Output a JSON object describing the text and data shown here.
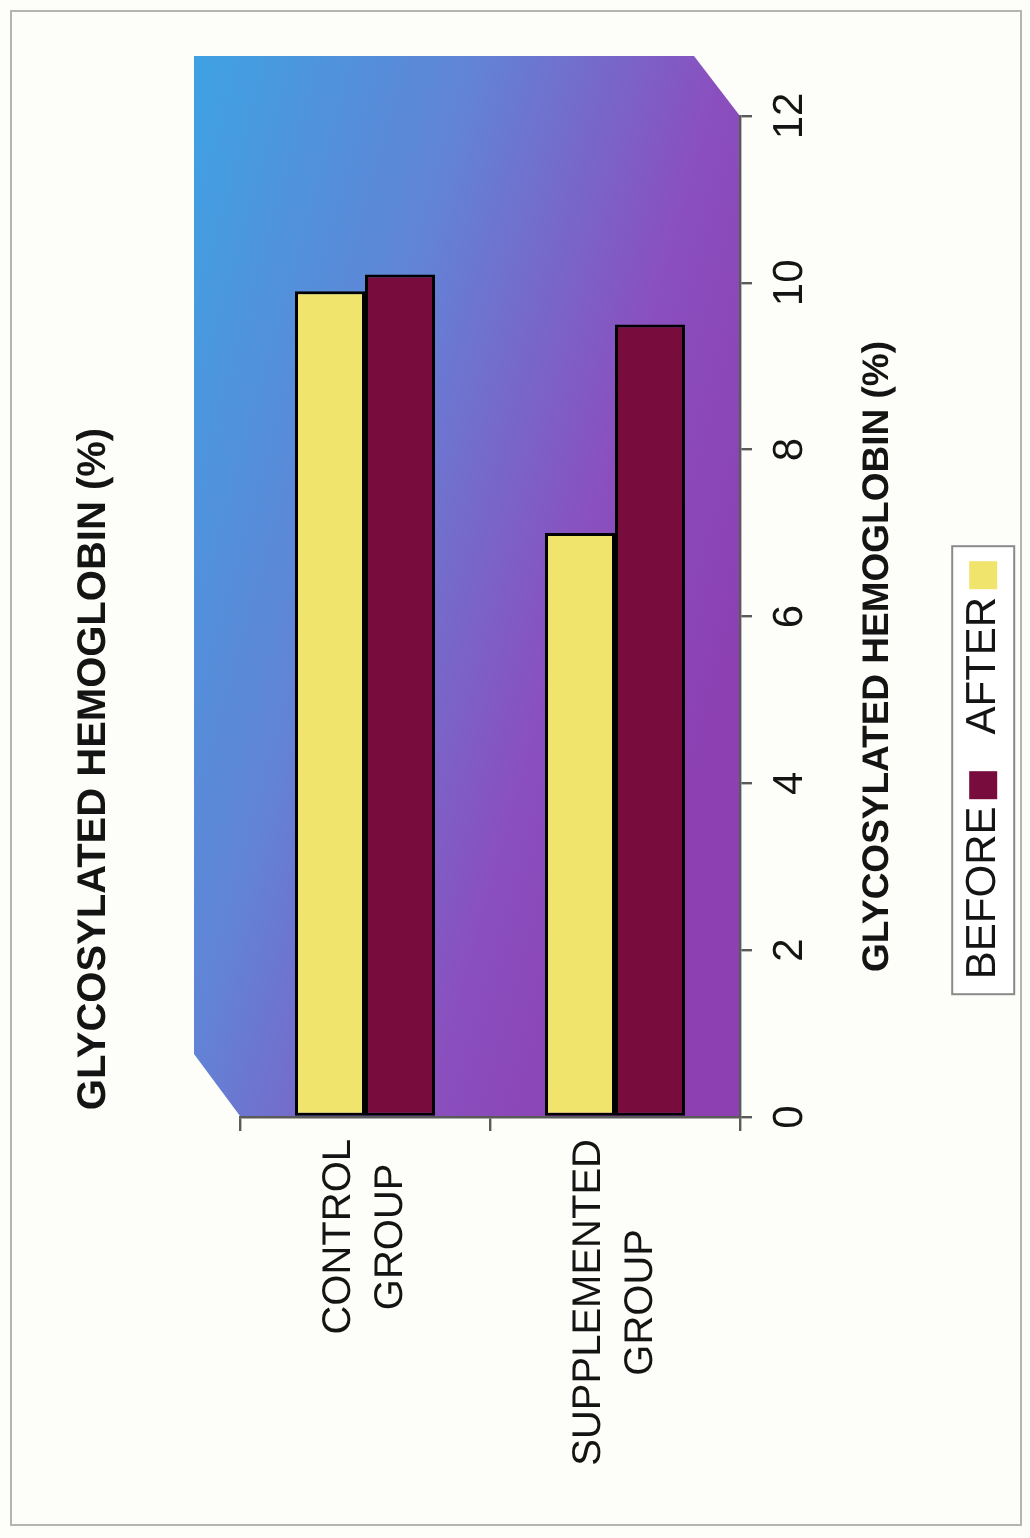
{
  "chart_data": {
    "type": "bar",
    "title": "GLYCOSYLATED HEMOGLOBIN (%)",
    "ylabel": "GLYCOSYLATED HEMOGLOBIN (%)",
    "categories": [
      "CONTROL GROUP",
      "SUPPLEMENTED GROUP"
    ],
    "series": [
      {
        "name": "AFTER",
        "color": "#f0e46c",
        "values": [
          9.9,
          7.0
        ]
      },
      {
        "name": "BEFORE",
        "color": "#780c3c",
        "values": [
          10.1,
          9.5
        ]
      }
    ],
    "ylim": [
      0,
      12
    ],
    "yticks": [
      0,
      2,
      4,
      6,
      8,
      10,
      12
    ],
    "legend": "right"
  }
}
